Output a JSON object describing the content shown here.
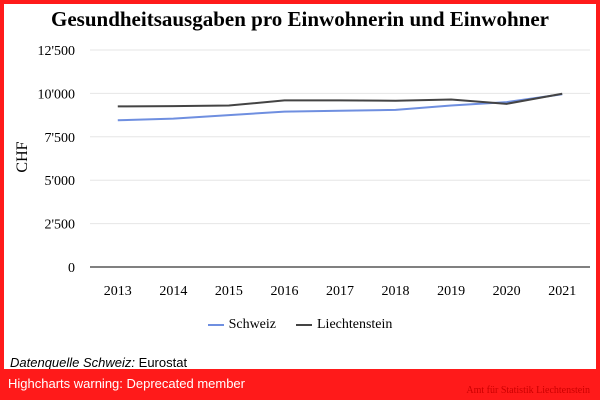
{
  "chart_data": {
    "type": "line",
    "title": "Gesundheitsausgaben pro Einwohnerin und Einwohner",
    "ylabel": "CHF",
    "xlabel": "",
    "categories": [
      "2013",
      "2014",
      "2015",
      "2016",
      "2017",
      "2018",
      "2019",
      "2020",
      "2021"
    ],
    "ylim": [
      0,
      12500
    ],
    "yticks": [
      0,
      2500,
      5000,
      7500,
      10000,
      12500
    ],
    "ytick_labels": [
      "0",
      "2'500",
      "5'000",
      "7'500",
      "10'000",
      "12'500"
    ],
    "grid": true,
    "legend_position": "bottom",
    "series": [
      {
        "name": "Schweiz",
        "color": "#6f8fe0",
        "values": [
          8450,
          8550,
          8750,
          8950,
          9000,
          9050,
          9300,
          9500,
          9950
        ]
      },
      {
        "name": "Liechtenstein",
        "color": "#444444",
        "values": [
          9250,
          9270,
          9300,
          9600,
          9600,
          9580,
          9650,
          9400,
          9980
        ]
      }
    ]
  },
  "source": {
    "label": "Datenquelle Schweiz:",
    "value": "Eurostat"
  },
  "warning": "Highcharts warning: Deprecated member",
  "credit": "Amt für Statistik Liechtenstein",
  "colors": {
    "frame": "#ff1a1a"
  }
}
